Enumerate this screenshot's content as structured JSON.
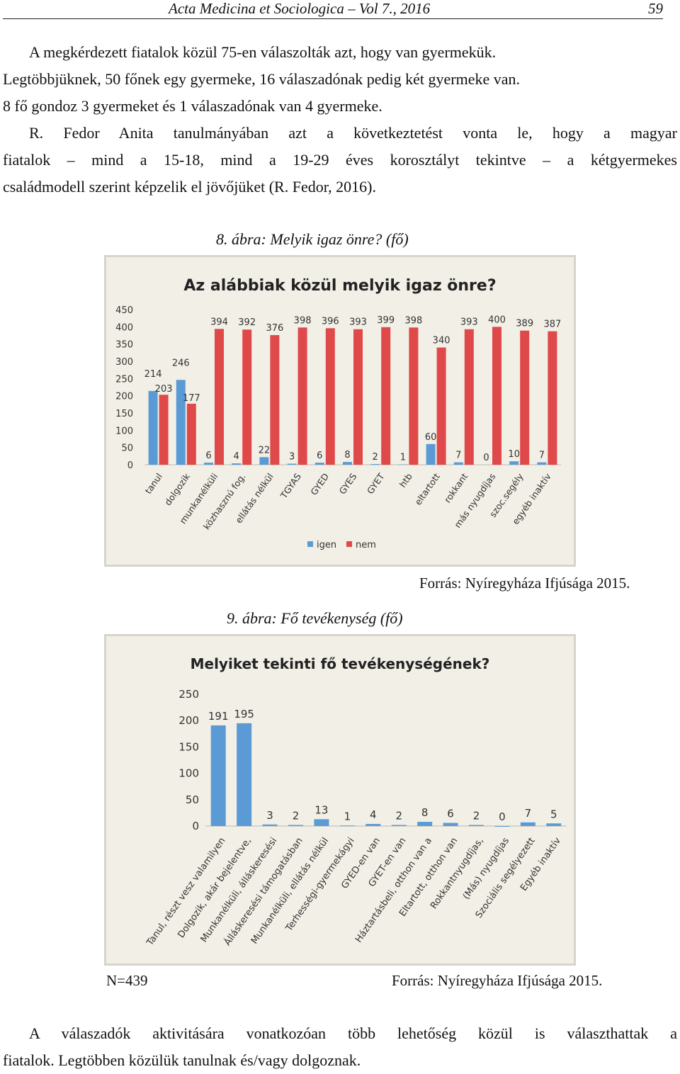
{
  "header": {
    "journal": "Acta Medicina et Sociologica – Vol 7., 2016",
    "page": "59"
  },
  "para1": {
    "lines": [
      "A megkérdezett fiatalok közül 75-en válaszolták azt, hogy van gyermekük.",
      "Legtöbbjüknek, 50 főnek egy gyermeke, 16 válaszadónak pedig két gyermeke van.",
      "8 fő gondoz 3 gyermeket és 1 válaszadónak van 4 gyermeke."
    ]
  },
  "para2": {
    "lines": [
      "R. Fedor Anita tanulmányában azt a következtetést vonta le, hogy a magyar",
      "fiatalok – mind a 15-18, mind a 19-29 éves korosztályt tekintve – a kétgyermekes",
      "családmodell szerint képzelik el jövőjüket (R. Fedor, 2016)."
    ]
  },
  "fig8": {
    "caption": "8. ábra: Melyik igaz önre? (fő)",
    "source": "Forrás: Nyíregyháza Ifjúsága 2015."
  },
  "fig9": {
    "caption": "9. ábra: Fő tevékenység (fő)",
    "n": "N=439",
    "source": "Forrás: Nyíregyháza Ifjúsága 2015."
  },
  "para3": {
    "lines": [
      "A válaszadók aktivitására vonatkozóan több lehetőség közül is választhattak a",
      "fiatalok. Legtöbben közülük tanulnak és/vagy dolgoznak."
    ]
  },
  "colors": {
    "blue": "#5b9bd5",
    "red": "#e0494a",
    "background": "#f1efe6",
    "grid": "#d8d6cc"
  },
  "chart_data": [
    {
      "type": "bar",
      "title": "Az alábbiak közül melyik igaz önre?",
      "categories": [
        "tanul",
        "dolgozik",
        "munkanélküli",
        "közhasznú fog.",
        "ellátás nélkül",
        "TGYAS",
        "GYED",
        "GYES",
        "GYET",
        "htb",
        "eltartott",
        "rokkant",
        "más nyugdíjas",
        "szoc.segély",
        "egyéb inaktív"
      ],
      "series": [
        {
          "name": "igen",
          "values": [
            214,
            246,
            6,
            4,
            22,
            3,
            6,
            8,
            2,
            1,
            60,
            7,
            0,
            10,
            7
          ]
        },
        {
          "name": "nem",
          "values": [
            203,
            177,
            394,
            392,
            376,
            398,
            396,
            393,
            399,
            398,
            340,
            393,
            400,
            389,
            387
          ]
        }
      ],
      "yticks": [
        "450",
        "400",
        "350",
        "300",
        "250",
        "200",
        "150",
        "100",
        "50",
        "0"
      ],
      "ylim": [
        0,
        450
      ],
      "legend": "bottom",
      "grid": false
    },
    {
      "type": "bar",
      "title": "Melyiket tekinti fő tevékenységének?",
      "categories": [
        "Tanul, részt vesz valamilyen",
        "Dolgozik, akár bejelentve,",
        "Munkanélküli, álláskeresési",
        "Álláskeresési támogatásban",
        "Munkanélküli, ellátás nélkül",
        "Terhességi-gyermekágyi",
        "GYED-en van",
        "GYET-en van",
        "Háztartásbeli, otthon van a",
        "Eltartott, otthon van",
        "Rokkantnyugdíjas,",
        "(Más) nyugdíjas",
        "Szociális segélyezett",
        "Egyéb inaktív"
      ],
      "values": [
        191,
        195,
        3,
        2,
        13,
        1,
        4,
        2,
        8,
        6,
        2,
        0,
        7,
        5
      ],
      "yticks": [
        "250",
        "200",
        "150",
        "100",
        "50",
        "0"
      ],
      "ylim": [
        0,
        250
      ],
      "grid": false
    }
  ]
}
